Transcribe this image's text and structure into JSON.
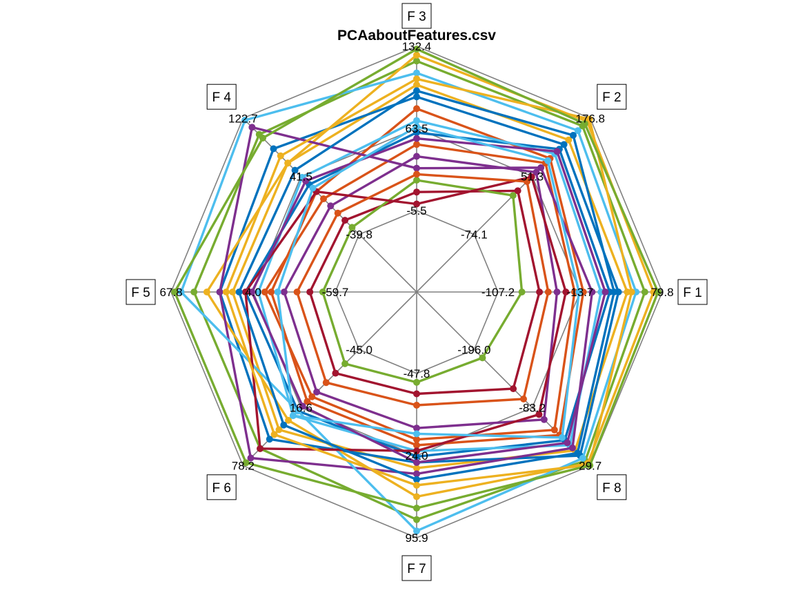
{
  "chart_data": {
    "type": "radar",
    "title": "PCAaboutFeatures.csv",
    "axes": [
      "F 1",
      "F 2",
      "F 3",
      "F 4",
      "F 5",
      "F 6",
      "F 7",
      "F 8"
    ],
    "axis_ticks": [
      [
        "-107.2",
        "-13.7",
        "79.8"
      ],
      [
        "-74.1",
        "51.3",
        "176.8"
      ],
      [
        "-5.5",
        "63.5",
        "132.4"
      ],
      [
        "-39.8",
        "41.5",
        "122.7"
      ],
      [
        "-59.7",
        "4.0",
        "67.8"
      ],
      [
        "-45.0",
        "16.6",
        "78.2"
      ],
      [
        "-47.8",
        "24.0",
        "95.9"
      ],
      [
        "-196.0",
        "-83.2",
        "29.7"
      ]
    ],
    "axis_ranges": [
      [
        -107.2,
        79.8
      ],
      [
        -74.1,
        176.8
      ],
      [
        -5.5,
        132.4
      ],
      [
        -39.8,
        122.7
      ],
      [
        -59.7,
        67.8
      ],
      [
        -45.0,
        78.2
      ],
      [
        -47.8,
        95.9
      ],
      [
        -196.0,
        29.7
      ]
    ],
    "colors": [
      "#0072BD",
      "#D95319",
      "#EDB120",
      "#7E2F8E",
      "#77AC30",
      "#4DBEEE",
      "#A2142F"
    ],
    "series": [
      {
        "values": [
          20,
          110,
          60,
          30,
          10,
          20,
          25,
          -20
        ]
      },
      {
        "values": [
          -10,
          90,
          80,
          20,
          -10,
          10,
          15,
          -30
        ]
      },
      {
        "values": [
          40,
          130,
          100,
          60,
          20,
          40,
          35,
          0
        ]
      },
      {
        "values": [
          -40,
          60,
          40,
          0,
          -20,
          0,
          0,
          -60
        ]
      },
      {
        "values": [
          60,
          160,
          120,
          100,
          50,
          60,
          80,
          20
        ]
      },
      {
        "values": [
          10,
          100,
          70,
          40,
          0,
          25,
          20,
          -10
        ]
      },
      {
        "values": [
          -60,
          20,
          10,
          -20,
          -40,
          -20,
          -30,
          -120
        ]
      },
      {
        "values": [
          30,
          120,
          90,
          80,
          30,
          50,
          30,
          10
        ]
      },
      {
        "values": [
          -20,
          80,
          50,
          10,
          -5,
          5,
          10,
          -40
        ]
      },
      {
        "values": [
          70,
          170,
          125,
          60,
          40,
          30,
          60,
          25
        ]
      },
      {
        "values": [
          0,
          70,
          30,
          110,
          30,
          70,
          40,
          -5
        ]
      },
      {
        "values": [
          -80,
          10,
          20,
          -30,
          -50,
          -30,
          -40,
          -180
        ]
      },
      {
        "values": [
          50,
          150,
          110,
          120,
          60,
          20,
          90,
          15
        ]
      },
      {
        "values": [
          -30,
          50,
          0,
          20,
          10,
          60,
          20,
          -70
        ]
      },
      {
        "values": [
          25,
          140,
          95,
          50,
          15,
          35,
          45,
          5
        ]
      },
      {
        "values": [
          -50,
          40,
          25,
          -10,
          -30,
          -10,
          -20,
          -100
        ]
      },
      {
        "values": [
          45,
          175,
          105,
          70,
          25,
          45,
          50,
          28
        ]
      },
      {
        "values": [
          15,
          105,
          55,
          35,
          5,
          15,
          30,
          -15
        ]
      },
      {
        "values": [
          75,
          165,
          130,
          95,
          65,
          75,
          70,
          29
        ]
      },
      {
        "values": [
          -15,
          85,
          65,
          25,
          -15,
          25,
          5,
          -25
        ]
      }
    ]
  }
}
